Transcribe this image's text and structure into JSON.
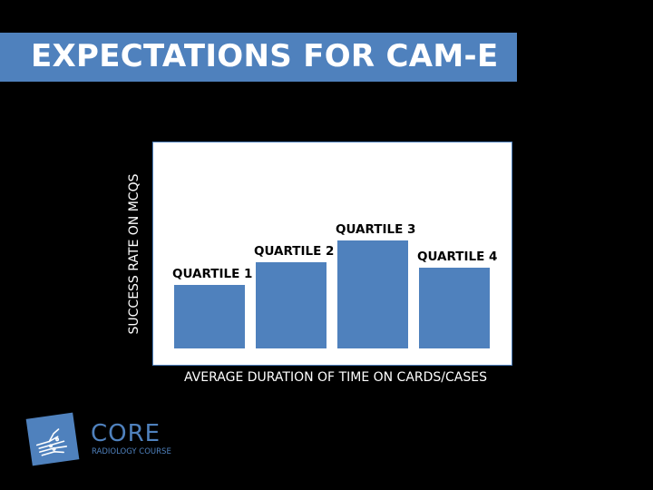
{
  "slide": {
    "title": "EXPECTATIONS FOR CAM-E"
  },
  "chart_data": {
    "type": "bar",
    "categories": [
      "QUARTILE 1",
      "QUARTILE 2",
      "QUARTILE 3",
      "QUARTILE 4"
    ],
    "values": [
      70,
      95,
      119,
      89
    ],
    "xlabel": "AVERAGE DURATION OF TIME ON CARDS/CASES",
    "ylabel": "SUCCESS RATE ON MCQS",
    "ylim": [
      0,
      228
    ],
    "grid": false,
    "axis_ticks": false,
    "bar_color": "#4f81bd",
    "plot_background": "#ffffff"
  },
  "logo": {
    "name": "CORE",
    "subtitle": "RADIOLOGY COURSE",
    "icon": "hand-xray-icon",
    "color": "#4f81bd"
  }
}
